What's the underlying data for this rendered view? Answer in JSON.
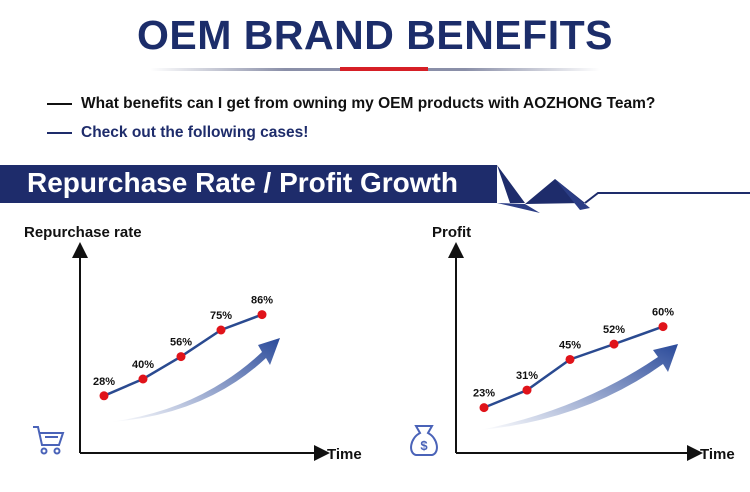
{
  "header": {
    "title": "OEM BRAND BENEFITS"
  },
  "bullets": [
    {
      "text": "What benefits can I get from owning my OEM products with AOZHONG Team?",
      "color": "#111111"
    },
    {
      "text": "Check out the following cases!",
      "color": "#1e2c6b"
    }
  ],
  "banner": {
    "title": "Repurchase Rate / Profit Growth"
  },
  "colors": {
    "navy": "#1e2c6b",
    "line": "#2a4a90",
    "point": "#e0131a",
    "icon": "#4a63b8"
  },
  "chart_data": [
    {
      "type": "line",
      "title": "Repurchase rate",
      "ylabel": "Repurchase rate",
      "xlabel": "Time",
      "icon": "shopping-cart-icon",
      "values": [
        28,
        40,
        56,
        75,
        86
      ],
      "labels": [
        "28%",
        "40%",
        "56%",
        "75%",
        "86%"
      ]
    },
    {
      "type": "line",
      "title": "Profit",
      "ylabel": "Profit",
      "xlabel": "Time",
      "icon": "money-bag-icon",
      "values": [
        23,
        31,
        45,
        52,
        60
      ],
      "labels": [
        "23%",
        "31%",
        "45%",
        "52%",
        "60%"
      ]
    }
  ]
}
